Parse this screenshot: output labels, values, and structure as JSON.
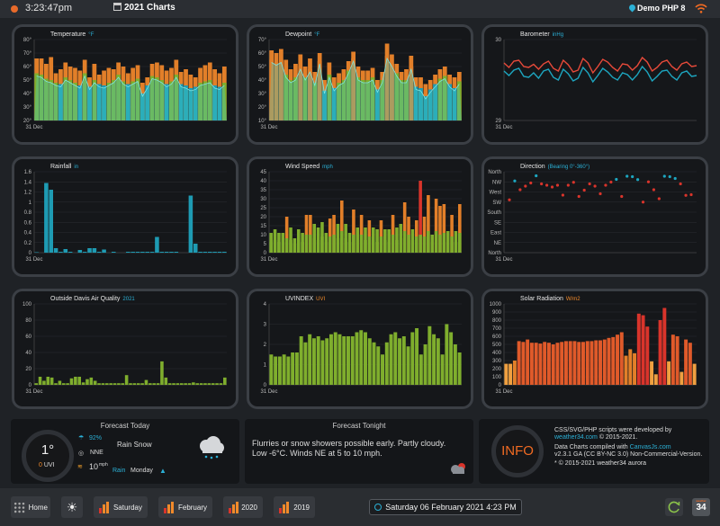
{
  "topbar": {
    "time": "3:23:47pm",
    "title": "2021 Charts",
    "station": "Demo PHP 8"
  },
  "colors": {
    "orange": "#e27f29",
    "green": "#7fae2d",
    "blue": "#1e9bb3",
    "red": "#d9342b",
    "teal": "#1da6c0"
  },
  "charts": [
    {
      "id": "temperature",
      "title": "Temperature",
      "unit": "°F",
      "unit_color": "#2bb0d6",
      "type": "bar",
      "ylim": [
        20,
        80
      ],
      "yticks": [
        "20°",
        "30°",
        "40°",
        "50°",
        "60°",
        "70°",
        "80°"
      ],
      "xtick": "31 Dec",
      "series": [
        {
          "color_role": "high",
          "values": [
            66,
            66,
            62,
            67,
            55,
            58,
            63,
            60,
            59,
            57,
            65,
            52,
            62,
            54,
            57,
            59,
            58,
            63,
            60,
            55,
            59,
            61,
            48,
            52,
            62,
            63,
            61,
            57,
            59,
            65,
            56,
            58,
            54,
            52,
            59,
            61,
            63,
            58,
            55,
            60
          ]
        },
        {
          "color_role": "low",
          "values": [
            55,
            54,
            51,
            50,
            48,
            47,
            52,
            50,
            48,
            46,
            55,
            45,
            50,
            47,
            46,
            48,
            50,
            54,
            49,
            47,
            49,
            51,
            40,
            46,
            53,
            52,
            50,
            47,
            49,
            54,
            47,
            46,
            44,
            45,
            48,
            49,
            50,
            46,
            45,
            48
          ]
        }
      ]
    },
    {
      "id": "dewpoint",
      "title": "Dewpoint",
      "unit": "°F",
      "unit_color": "#2bb0d6",
      "type": "bar",
      "ylim": [
        10,
        70
      ],
      "yticks": [
        "10°",
        "20°",
        "30°",
        "40°",
        "50°",
        "60°",
        "70°"
      ],
      "xtick": "31 Dec",
      "series": [
        {
          "color_role": "high",
          "values": [
            62,
            60,
            63,
            55,
            48,
            52,
            59,
            50,
            56,
            46,
            60,
            40,
            53,
            42,
            45,
            48,
            54,
            61,
            50,
            47,
            47,
            49,
            40,
            46,
            67,
            59,
            52,
            46,
            48,
            58,
            42,
            42,
            37,
            40,
            44,
            48,
            50,
            44,
            42,
            46
          ]
        },
        {
          "color_role": "low",
          "values": [
            55,
            53,
            55,
            44,
            40,
            42,
            50,
            42,
            48,
            38,
            54,
            32,
            44,
            34,
            38,
            40,
            47,
            56,
            42,
            40,
            40,
            42,
            33,
            40,
            58,
            52,
            45,
            40,
            40,
            50,
            35,
            34,
            28,
            33,
            37,
            41,
            43,
            37,
            34,
            39
          ]
        }
      ]
    },
    {
      "id": "barometer",
      "title": "Barometer",
      "unit": "inHg",
      "unit_color": "#2bb0d6",
      "type": "line",
      "ylim": [
        29,
        30.8
      ],
      "yticks": [
        "29",
        "30"
      ],
      "xtick": "31 Dec",
      "series": [
        {
          "color_role": "max",
          "values": [
            30.28,
            30.18,
            30.32,
            30.34,
            30.2,
            30.18,
            30.25,
            30.14,
            30.26,
            30.32,
            30.16,
            30.1,
            30.34,
            30.24,
            30.08,
            30.12,
            30.38,
            30.28,
            30.06,
            30.2,
            30.36,
            30.3,
            30.18,
            30.1,
            30.26,
            30.24,
            30.12,
            30.22,
            30.4,
            30.3,
            30.1,
            30.18,
            30.3,
            30.34,
            30.2,
            30.12,
            30.26,
            30.3,
            30.2,
            30.22
          ]
        },
        {
          "color_role": "min",
          "values": [
            30.1,
            30.0,
            30.12,
            30.16,
            29.98,
            29.96,
            30.06,
            29.94,
            30.1,
            30.14,
            29.96,
            29.9,
            30.14,
            30.04,
            29.88,
            29.94,
            30.18,
            30.06,
            29.86,
            30.0,
            30.16,
            30.08,
            29.96,
            29.9,
            30.06,
            30.02,
            29.9,
            30.02,
            30.2,
            30.08,
            29.88,
            29.98,
            30.1,
            30.12,
            29.98,
            29.9,
            30.06,
            30.1,
            29.98,
            30.0
          ]
        }
      ]
    },
    {
      "id": "rainfall",
      "title": "Rainfall",
      "unit": "in",
      "unit_color": "#2bb0d6",
      "type": "bar",
      "ylim": [
        0,
        1.8
      ],
      "yticks": [
        "0",
        "0.2",
        "0.4",
        "0.6",
        "0.8",
        "1",
        "1.2",
        "1.4",
        "1.6"
      ],
      "xtick": "31 Dec",
      "series": [
        {
          "color_role": "rain",
          "values": [
            0.01,
            0,
            1.55,
            1.4,
            0.1,
            0.02,
            0.08,
            0.02,
            0,
            0.06,
            0.02,
            0.1,
            0.1,
            0.02,
            0.07,
            0,
            0.02,
            0,
            0,
            0.02,
            0.02,
            0.02,
            0.02,
            0.02,
            0.02,
            0.35,
            0.02,
            0.02,
            0.02,
            0.02,
            0,
            0,
            1.27,
            0.2,
            0.02,
            0.02,
            0.02,
            0.02,
            0.02,
            0.02
          ]
        }
      ]
    },
    {
      "id": "windspeed",
      "title": "Wind Speed",
      "unit": "mph",
      "unit_color": "#2bb0d6",
      "type": "bar",
      "ylim": [
        0,
        45
      ],
      "yticks": [
        "0",
        "5",
        "10",
        "15",
        "20",
        "25",
        "30",
        "35",
        "40",
        "45"
      ],
      "xtick": "31 Dec",
      "series": [
        {
          "color_role": "gust",
          "values": [
            11,
            13,
            11,
            11,
            20,
            14,
            8,
            13,
            11,
            21,
            21,
            16,
            14,
            17,
            11,
            19,
            21,
            16,
            29,
            16,
            11,
            24,
            14,
            21,
            14,
            18,
            14,
            13,
            18,
            13,
            13,
            21,
            14,
            16,
            28,
            20,
            13,
            18,
            40,
            20,
            32,
            10,
            30,
            26,
            27,
            12,
            21,
            12,
            27
          ]
        },
        {
          "color_role": "avg",
          "values": [
            6,
            7,
            6,
            6,
            8,
            7,
            5,
            8,
            6,
            10,
            10,
            8,
            7,
            9,
            6,
            9,
            10,
            8,
            12,
            8,
            6,
            10,
            7,
            10,
            7,
            9,
            7,
            6,
            9,
            7,
            6,
            10,
            7,
            8,
            12,
            10,
            7,
            9,
            10,
            9,
            12,
            6,
            12,
            10,
            11,
            6,
            9,
            6,
            11
          ]
        }
      ]
    },
    {
      "id": "direction",
      "title": "Direction",
      "unit": "(Bearing 0°-360°)",
      "unit_color": "#2bb0d6",
      "type": "scatter",
      "yticks": [
        "North",
        "NE",
        "East",
        "SE",
        "South",
        "SW",
        "West",
        "NW",
        "North"
      ],
      "xtick": "31 Dec",
      "series": [
        {
          "color_role": "dir",
          "values": [
            235,
            319,
            280,
            296,
            310,
            342,
            306,
            300,
            292,
            300,
            256,
            300,
            313,
            250,
            278,
            306,
            296,
            262,
            300,
            314,
            326,
            250,
            340,
            338,
            325,
            225,
            315,
            280,
            240,
            340,
            338,
            330,
            306,
            255,
            258
          ]
        }
      ]
    },
    {
      "id": "airquality",
      "title": "Outside Davis Air Quality",
      "unit": "2021",
      "unit_color": "#2bb0d6",
      "type": "bar",
      "ylim": [
        0,
        100
      ],
      "yticks": [
        "0",
        "20",
        "40",
        "60",
        "80",
        "100"
      ],
      "xtick": "31 Dec",
      "series": [
        {
          "color_role": "aq",
          "values": [
            2,
            10,
            5,
            10,
            9,
            2,
            5,
            2,
            2,
            8,
            10,
            10,
            3,
            7,
            9,
            5,
            2,
            2,
            2,
            2,
            2,
            2,
            2,
            12,
            2,
            2,
            2,
            2,
            6,
            2,
            2,
            2,
            29,
            9,
            2,
            2,
            2,
            2,
            2,
            2,
            3,
            2,
            2,
            2,
            2,
            2,
            2,
            2,
            9
          ]
        }
      ]
    },
    {
      "id": "uvindex",
      "title": "UVINDEX",
      "unit": "UVI",
      "unit_color": "#f28a2a",
      "type": "bar",
      "ylim": [
        0,
        4
      ],
      "yticks": [
        "0",
        "1",
        "2",
        "3",
        "4"
      ],
      "xtick": "31 Dec",
      "series": [
        {
          "color_role": "uv",
          "values": [
            1.5,
            1.4,
            1.4,
            1.5,
            1.4,
            1.6,
            1.6,
            2.4,
            2.1,
            2.5,
            2.3,
            2.4,
            2.2,
            2.3,
            2.5,
            2.6,
            2.5,
            2.4,
            2.4,
            2.4,
            2.6,
            2.7,
            2.6,
            2.3,
            2.1,
            1.9,
            1.5,
            2.1,
            2.5,
            2.6,
            2.3,
            2.4,
            1.9,
            2.6,
            2.8,
            1.5,
            2.0,
            2.9,
            2.5,
            2.3,
            1.5,
            3.0,
            2.6,
            2.0,
            1.6
          ]
        }
      ]
    },
    {
      "id": "solar",
      "title": "Solar Radiation",
      "unit": "W/m2",
      "unit_color": "#f28a2a",
      "type": "bar",
      "ylim": [
        0,
        1000
      ],
      "yticks": [
        "0",
        "100",
        "200",
        "300",
        "400",
        "500",
        "600",
        "700",
        "800",
        "900",
        "1000"
      ],
      "xtick": "31 Dec",
      "series": [
        {
          "color_role": "solar",
          "values": [
            260,
            260,
            300,
            540,
            530,
            560,
            520,
            520,
            510,
            530,
            520,
            500,
            520,
            530,
            540,
            540,
            540,
            530,
            530,
            540,
            540,
            550,
            550,
            560,
            580,
            590,
            620,
            650,
            360,
            440,
            390,
            880,
            860,
            720,
            290,
            130,
            800,
            950,
            290,
            620,
            600,
            160,
            560,
            520,
            260
          ]
        }
      ]
    }
  ],
  "forecast_today": {
    "title": "Forecast Today",
    "temp": "1°",
    "uvi": "0",
    "uvi_label": "UVI",
    "humidity": "92%",
    "wind_dir": "NNE",
    "wind_speed": "10",
    "wind_unit": "mph",
    "conditions": "Rain Snow",
    "rain_label": "Rain",
    "day": "Monday"
  },
  "forecast_tonight": {
    "title": "Forecast Tonight",
    "text": "Flurries or snow showers possible early. Partly cloudy. Low -6°C. Winds NE at 5 to 10 mph."
  },
  "credits": {
    "badge": "INFO",
    "line1": "CSS/SVG/PHP scripts were developed by",
    "site": "weather34.com",
    "line2": "© 2015-2021.",
    "line3": "Data Charts compiled with",
    "canvas": "CanvasJs.com",
    "line4": "v2.3.1 GA (CC BY-NC 3.0) Non-Commercial-Version.",
    "line5": "* © 2015-2021 weather34 aurora"
  },
  "bottombar": {
    "home": "Home",
    "b1": "Saturday",
    "b2": "February",
    "b3": "2020",
    "b4": "2019",
    "datetime": "Saturday 06 February 2021 4:23 PM",
    "logo": "34",
    "logo_small": "weather"
  }
}
